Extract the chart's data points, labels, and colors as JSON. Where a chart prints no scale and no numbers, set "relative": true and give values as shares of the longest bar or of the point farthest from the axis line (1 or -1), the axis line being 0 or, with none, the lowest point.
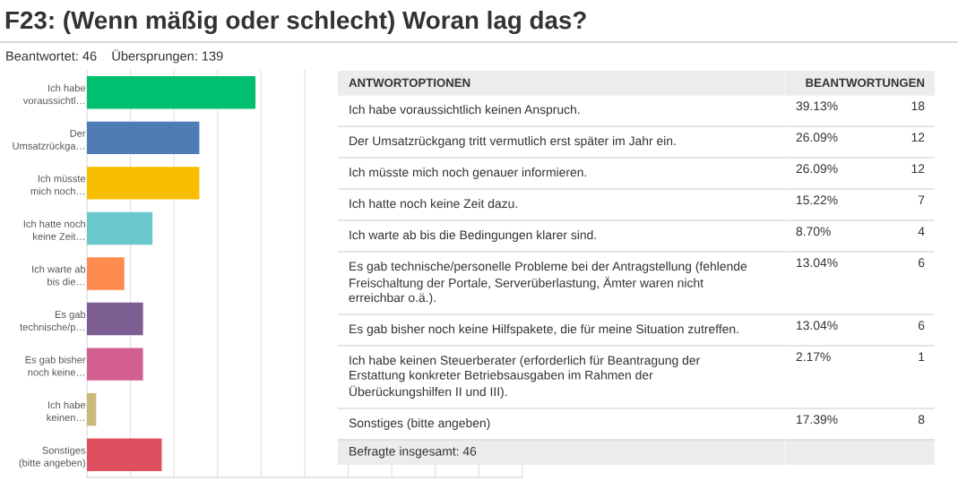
{
  "chart_data": [
    {
      "type": "bar",
      "orientation": "horizontal",
      "relative": true,
      "title": "F23: (Wenn mäßig oder schlecht) Woran lag das?",
      "subtitle": "Beantwortet: 46    Übersprungen: 139",
      "categories": [
        "Ich habe\nvoraussichtl…",
        "Der\nUmsatzrückga…",
        "Ich müsste\nmich noch…",
        "Ich hatte noch\nkeine Zeit…",
        "Ich warte ab\nbis die…",
        "Es gab\ntechnische/p…",
        "Es gab bisher\nnoch keine…",
        "Ich habe\nkeinen…",
        "Sonstiges\n(bitte angeben)"
      ],
      "values": [
        1,
        0.667,
        0.667,
        0.389,
        0.222,
        0.333,
        0.333,
        0.055,
        0.444
      ],
      "colors": [
        "#00bf6f",
        "#507cb6",
        "#f9be00",
        "#6bc8cd",
        "#ff8b4f",
        "#7d5e92",
        "#d25f90",
        "#c9b97a",
        "#df4f60"
      ],
      "tick_labels": "y",
      "grid": "x"
    },
    {
      "type": "other",
      "ylabel": "ANTWORTOPTIONEN",
      "y2label": "BEANTWORTUNGEN",
      "categories": [
        "Ich habe voraussichtlich keinen Anspruch.",
        "Der Umsatzrückgang tritt vermutlich erst später im Jahr ein.",
        "Ich müsste mich noch genauer informieren.",
        "Ich hatte noch keine Zeit dazu.",
        "Ich warte ab bis die Bedingungen klarer sind.",
        "Es gab technische/personelle Probleme bei der Antragstellung (fehlende\nFreischaltung der Portale, Serverüberlastung, Ämter waren nicht\nerreichbar o.ä.).",
        "Es gab bisher noch keine Hilfspakete, die für meine Situation zutreffen.",
        "Ich habe keinen Steuerberater (erforderlich für Beantragung der\nErstattung konkreter Betriebsausgaben im Rahmen der\nÜberückungshilfen II und III).",
        "Sonstiges (bitte angeben)"
      ],
      "series": [
        {
          "values": [
            39.13,
            26.09,
            26.09,
            15.22,
            8.7,
            13.04,
            13.04,
            2.17,
            17.39
          ],
          "value_labels": [
            "39.13%",
            "26.09%",
            "26.09%",
            "15.22%",
            "8.70%",
            "13.04%",
            "13.04%",
            "2.17%",
            "17.39%"
          ]
        },
        {
          "values": [
            18,
            12,
            12,
            7,
            4,
            6,
            6,
            1,
            8
          ]
        }
      ],
      "data_labels": true,
      "annotations": [
        "Befragte insgesamt: 46"
      ]
    }
  ]
}
